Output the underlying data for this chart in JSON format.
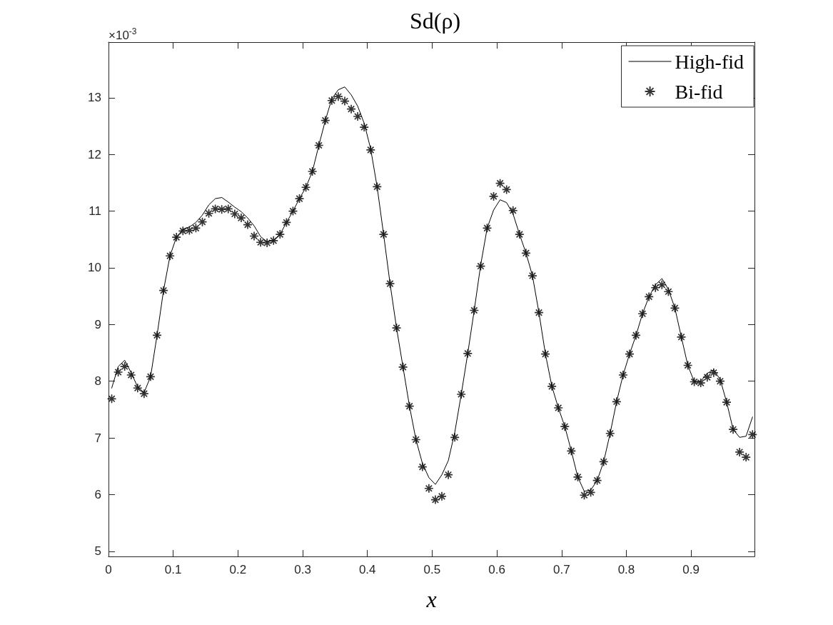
{
  "chart_data": {
    "type": "line",
    "title": "Sd(ρ)",
    "xlabel": "x",
    "annotations": [
      "×10$^{-3}$"
    ],
    "x": [
      0.005,
      0.015,
      0.025,
      0.035,
      0.045,
      0.055,
      0.065,
      0.075,
      0.085,
      0.095,
      0.105,
      0.115,
      0.125,
      0.135,
      0.145,
      0.155,
      0.165,
      0.175,
      0.185,
      0.195,
      0.205,
      0.215,
      0.225,
      0.235,
      0.245,
      0.255,
      0.265,
      0.275,
      0.285,
      0.295,
      0.305,
      0.315,
      0.325,
      0.335,
      0.345,
      0.355,
      0.365,
      0.375,
      0.385,
      0.395,
      0.405,
      0.415,
      0.425,
      0.435,
      0.445,
      0.455,
      0.465,
      0.475,
      0.485,
      0.495,
      0.505,
      0.515,
      0.525,
      0.535,
      0.545,
      0.555,
      0.565,
      0.575,
      0.585,
      0.595,
      0.605,
      0.615,
      0.625,
      0.635,
      0.645,
      0.655,
      0.665,
      0.675,
      0.685,
      0.695,
      0.705,
      0.715,
      0.725,
      0.735,
      0.745,
      0.755,
      0.765,
      0.775,
      0.785,
      0.795,
      0.805,
      0.815,
      0.825,
      0.835,
      0.845,
      0.855,
      0.865,
      0.875,
      0.885,
      0.895,
      0.905,
      0.915,
      0.925,
      0.935,
      0.945,
      0.955,
      0.965,
      0.975,
      0.985,
      0.995
    ],
    "series": [
      {
        "name": "High-fid",
        "marker": "none",
        "color": "#000000",
        "values": [
          7.88,
          8.26,
          8.37,
          8.15,
          7.9,
          7.8,
          8.08,
          8.81,
          9.6,
          10.21,
          10.54,
          10.68,
          10.72,
          10.8,
          10.93,
          11.11,
          11.22,
          11.24,
          11.16,
          11.07,
          10.99,
          10.88,
          10.74,
          10.55,
          10.46,
          10.48,
          10.59,
          10.8,
          11.0,
          11.22,
          11.42,
          11.7,
          12.16,
          12.6,
          12.98,
          13.14,
          13.19,
          13.05,
          12.85,
          12.55,
          12.1,
          11.43,
          10.59,
          9.72,
          8.94,
          8.25,
          7.56,
          6.97,
          6.55,
          6.3,
          6.18,
          6.35,
          6.6,
          7.1,
          7.77,
          8.49,
          9.25,
          10.05,
          10.7,
          11.02,
          11.2,
          11.15,
          10.95,
          10.59,
          10.26,
          9.86,
          9.21,
          8.48,
          7.91,
          7.53,
          7.2,
          6.77,
          6.31,
          6.06,
          6.08,
          6.25,
          6.58,
          7.08,
          7.64,
          8.11,
          8.48,
          8.81,
          9.19,
          9.49,
          9.7,
          9.81,
          9.62,
          9.29,
          8.78,
          8.28,
          7.99,
          8.0,
          8.14,
          8.2,
          8.03,
          7.63,
          7.15,
          7.01,
          7.03,
          7.37
        ]
      },
      {
        "name": "Bi-fid",
        "type": "scatter",
        "marker": "star",
        "color": "#000000",
        "values": [
          7.69,
          8.16,
          8.26,
          8.11,
          7.88,
          7.78,
          8.08,
          8.81,
          9.6,
          10.21,
          10.54,
          10.65,
          10.66,
          10.7,
          10.81,
          10.96,
          11.04,
          11.03,
          11.04,
          10.95,
          10.88,
          10.76,
          10.56,
          10.45,
          10.44,
          10.48,
          10.59,
          10.8,
          11.0,
          11.22,
          11.42,
          11.7,
          12.16,
          12.6,
          12.95,
          13.02,
          12.94,
          12.8,
          12.67,
          12.48,
          12.08,
          11.43,
          10.59,
          9.72,
          8.94,
          8.25,
          7.56,
          6.97,
          6.49,
          6.11,
          5.91,
          5.97,
          6.35,
          7.01,
          7.77,
          8.49,
          9.25,
          10.03,
          10.7,
          11.26,
          11.49,
          11.38,
          11.01,
          10.59,
          10.26,
          9.86,
          9.21,
          8.48,
          7.91,
          7.53,
          7.2,
          6.77,
          6.31,
          5.99,
          6.04,
          6.25,
          6.58,
          7.08,
          7.64,
          8.11,
          8.48,
          8.81,
          9.19,
          9.49,
          9.65,
          9.7,
          9.58,
          9.29,
          8.78,
          8.28,
          7.99,
          7.97,
          8.07,
          8.15,
          8.0,
          7.63,
          7.15,
          6.75,
          6.66,
          7.06
        ]
      }
    ],
    "xlim": [
      0,
      0.998
    ],
    "xticks": [
      0,
      0.1,
      0.2,
      0.3,
      0.4,
      0.5,
      0.6,
      0.7,
      0.8,
      0.9
    ],
    "ylim": [
      4.91,
      13.98
    ],
    "yticks": [
      5,
      6,
      7,
      8,
      9,
      10,
      11,
      12,
      13
    ],
    "grid": false,
    "legend": "top right"
  }
}
